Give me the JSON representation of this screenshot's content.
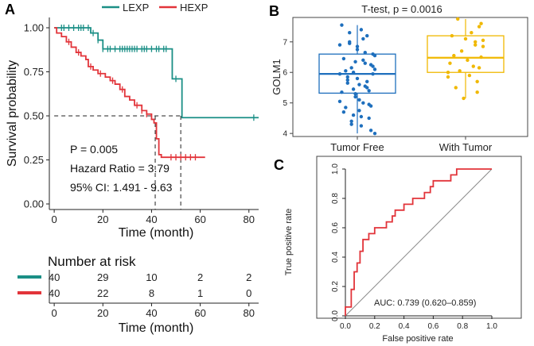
{
  "colors": {
    "lexp": "#1b8f86",
    "hexp": "#e2343a",
    "tumor_free": "#1e6fbd",
    "with_tumor": "#f0b800",
    "roc": "#e2343a"
  },
  "panel_labels": {
    "a": "A",
    "b": "B",
    "c": "C"
  },
  "chart_data": [
    {
      "type": "line",
      "subtype": "kaplan-meier",
      "legend": [
        "LEXP",
        "HEXP"
      ],
      "xlabel": "Time (month)",
      "ylabel": "Survival probability",
      "xlim": [
        -2,
        84
      ],
      "ylim": [
        0,
        1
      ],
      "xticks": [
        "0",
        "20",
        "40",
        "60",
        "80"
      ],
      "yticks": [
        "0.00",
        "0.25",
        "0.50",
        "0.75",
        "1.00"
      ],
      "series": [
        {
          "name": "LEXP",
          "steps": [
            [
              0,
              1.0
            ],
            [
              4,
              1.0
            ],
            [
              15,
              0.97
            ],
            [
              18,
              0.93
            ],
            [
              20,
              0.88
            ],
            [
              48,
              0.88
            ],
            [
              48.5,
              0.71
            ],
            [
              52,
              0.71
            ],
            [
              52.5,
              0.49
            ],
            [
              84,
              0.49
            ]
          ],
          "censor_times": [
            3,
            4,
            6,
            8,
            10,
            11,
            12,
            14,
            16,
            18,
            20,
            22,
            23,
            25,
            27,
            28,
            29,
            30,
            31,
            32,
            33,
            34,
            36,
            37,
            38,
            40,
            42,
            43,
            45,
            46,
            50,
            82
          ]
        },
        {
          "name": "HEXP",
          "steps": [
            [
              0,
              1.0
            ],
            [
              1,
              0.97
            ],
            [
              3,
              0.95
            ],
            [
              5,
              0.92
            ],
            [
              7,
              0.89
            ],
            [
              9,
              0.86
            ],
            [
              11,
              0.84
            ],
            [
              13,
              0.82
            ],
            [
              14,
              0.78
            ],
            [
              16,
              0.76
            ],
            [
              18,
              0.74
            ],
            [
              21,
              0.72
            ],
            [
              23,
              0.7
            ],
            [
              25,
              0.68
            ],
            [
              27,
              0.65
            ],
            [
              29,
              0.61
            ],
            [
              31,
              0.59
            ],
            [
              33,
              0.56
            ],
            [
              36,
              0.53
            ],
            [
              38,
              0.51
            ],
            [
              40,
              0.48
            ],
            [
              41,
              0.46
            ],
            [
              42,
              0.37
            ],
            [
              43,
              0.28
            ],
            [
              44,
              0.265
            ],
            [
              62,
              0.265
            ]
          ],
          "censor_times": [
            6,
            10,
            15,
            19,
            24,
            28,
            34,
            36,
            38,
            48,
            50,
            52,
            54,
            56,
            58
          ]
        }
      ],
      "median_line": 0.5,
      "median_times": [
        41.5,
        52
      ],
      "annotations": {
        "p_value": "P = 0.005",
        "hazard_ratio": "Hazard Ratio = 3.79",
        "ci": "95% CI: 1.491 - 9.63"
      }
    },
    {
      "type": "table",
      "title": "Number at risk",
      "columns": [
        "0",
        "20",
        "40",
        "60",
        "80"
      ],
      "xlabel": "Time (month)",
      "rows": [
        {
          "name": "LEXP",
          "values": [
            "40",
            "29",
            "10",
            "2",
            "2"
          ]
        },
        {
          "name": "HEXP",
          "values": [
            "40",
            "22",
            "8",
            "1",
            "0"
          ]
        }
      ]
    },
    {
      "type": "scatter",
      "subtype": "boxplot",
      "title": "T-test, p = 0.0016",
      "ylabel": "GOLM1",
      "ylim": [
        3.9,
        7.8
      ],
      "yticks": [
        "4",
        "5",
        "6",
        "7"
      ],
      "categories": [
        "Tumor Free",
        "With Tumor"
      ],
      "boxes": [
        {
          "name": "Tumor Free",
          "q1": 5.32,
          "median": 5.95,
          "q3": 6.6,
          "whisker_low": 4.0,
          "whisker_high": 7.55
        },
        {
          "name": "With Tumor",
          "q1": 6.0,
          "median": 6.48,
          "q3": 7.2,
          "whisker_low": 5.15,
          "whisker_high": 7.75
        }
      ],
      "points": [
        [
          5.95,
          6.1,
          6.6,
          4.1,
          4.95,
          5.7,
          6.3,
          7.1,
          4.55,
          5.6,
          6.85,
          5.2,
          6.0,
          4.4,
          7.0,
          5.85,
          6.05,
          4.7,
          7.55,
          5.05,
          6.55,
          6.2,
          4.9,
          5.4,
          7.2,
          5.55,
          6.4,
          4.25,
          5.1,
          6.75,
          5.3,
          4.6,
          6.15,
          7.3,
          5.75,
          4.85,
          6.45,
          5.35,
          6.9,
          4.0,
          5.95,
          6.25,
          4.5,
          5.5,
          6.65,
          5.0,
          7.4,
          4.75,
          5.8,
          6.35,
          5.45,
          4.3,
          6.95,
          5.65
        ],
        [
          6.0,
          7.05,
          6.5,
          7.5,
          5.7,
          6.9,
          6.2,
          7.3,
          5.9,
          6.4,
          7.1,
          5.15,
          6.7,
          6.05,
          7.75,
          5.5,
          6.55,
          7.2,
          6.3,
          5.85,
          6.85,
          7.6,
          6.15,
          5.35,
          7.0
        ]
      ]
    },
    {
      "type": "line",
      "subtype": "roc",
      "xlabel": "False positive rate",
      "ylabel": "True positive rate",
      "xlim": [
        -0.2,
        1.2
      ],
      "ylim": [
        0,
        1
      ],
      "ticks": [
        "0.0",
        "0.2",
        "0.4",
        "0.6",
        "0.8",
        "1.0"
      ],
      "auc_text": "AUC: 0.739 (0.620–0.859)",
      "curve": [
        [
          0,
          0
        ],
        [
          0,
          0.06
        ],
        [
          0.04,
          0.06
        ],
        [
          0.04,
          0.18
        ],
        [
          0.06,
          0.18
        ],
        [
          0.06,
          0.3
        ],
        [
          0.08,
          0.3
        ],
        [
          0.08,
          0.36
        ],
        [
          0.1,
          0.36
        ],
        [
          0.1,
          0.44
        ],
        [
          0.12,
          0.44
        ],
        [
          0.12,
          0.52
        ],
        [
          0.16,
          0.52
        ],
        [
          0.16,
          0.56
        ],
        [
          0.2,
          0.56
        ],
        [
          0.2,
          0.6
        ],
        [
          0.28,
          0.6
        ],
        [
          0.28,
          0.64
        ],
        [
          0.32,
          0.64
        ],
        [
          0.32,
          0.68
        ],
        [
          0.34,
          0.68
        ],
        [
          0.34,
          0.72
        ],
        [
          0.4,
          0.72
        ],
        [
          0.4,
          0.76
        ],
        [
          0.46,
          0.76
        ],
        [
          0.46,
          0.8
        ],
        [
          0.54,
          0.8
        ],
        [
          0.54,
          0.84
        ],
        [
          0.58,
          0.84
        ],
        [
          0.58,
          0.88
        ],
        [
          0.6,
          0.88
        ],
        [
          0.6,
          0.92
        ],
        [
          0.72,
          0.92
        ],
        [
          0.72,
          0.96
        ],
        [
          0.76,
          0.96
        ],
        [
          0.76,
          1.0
        ],
        [
          1.0,
          1.0
        ]
      ]
    }
  ]
}
